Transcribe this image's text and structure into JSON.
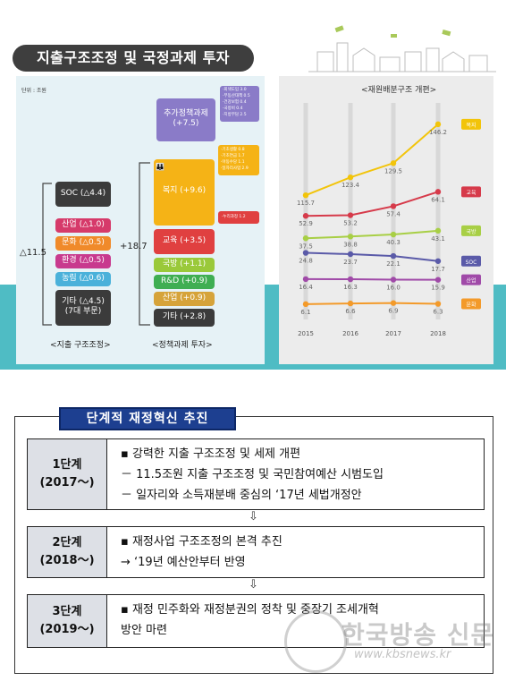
{
  "title": "지출구조조정 및 국정과제 투자",
  "left_panel": {
    "unit": "단위 : 조원",
    "left_total": "△11.5",
    "right_total": "+18.7",
    "cuts": [
      {
        "label": "SOC (△4.4)",
        "color": "#4a4a4a"
      },
      {
        "label": "산업 (△1.0)",
        "color": "#d63a6a"
      },
      {
        "label": "문화 (△0.5)",
        "color": "#f08a2a"
      },
      {
        "label": "환경 (△0.5)",
        "color": "#c83a8e"
      },
      {
        "label": "농림 (△0.6)",
        "color": "#4ab1da"
      }
    ],
    "cuts_other": {
      "line1": "기타 (△4.5)",
      "line2": "(7대 부문)"
    },
    "left_caption": "<지출 구조조정>",
    "right_caption": "<정책과제 투자>",
    "additional": {
      "line1": "추가정책과제",
      "line2": "(+7.5)",
      "color": "#8a7bc8"
    },
    "additional_tags": [
      "·회색도입 3.0",
      "·부동산대책 0.5",
      "·건강보험 0.4",
      "·국방비 0.4",
      "·지방부담 2.5"
    ],
    "welfare": {
      "label": "복지 (+9.6)",
      "color": "#f5b316"
    },
    "welfare_tags": [
      "·기초생활 0.8",
      "·기초연금 1.7",
      "·아동수당 1.1",
      "·일자리사업 2.9"
    ],
    "education": {
      "label": "교육 (+3.5)",
      "color": "#e04040"
    },
    "education_tags": [
      "·누리과정 1.2"
    ],
    "small_items": [
      {
        "label": "국방 (+1.1)",
        "color": "#9ac93a"
      },
      {
        "label": "R&D (+0.9)",
        "color": "#3fae52"
      },
      {
        "label": "산업 (+0.9)",
        "color": "#d6a33a"
      }
    ],
    "invest_other": "기타 (+2.8)"
  },
  "chart_data": {
    "type": "line",
    "title": "<재원배분구조 개편>",
    "x": [
      "2015",
      "2016",
      "2017",
      "2018"
    ],
    "series": [
      {
        "name": "복지",
        "values": [
          115.7,
          123.4,
          129.5,
          146.2
        ],
        "color": "#f2c40a"
      },
      {
        "name": "교육",
        "values": [
          52.9,
          53.2,
          57.4,
          64.1
        ],
        "color": "#d63a4a"
      },
      {
        "name": "국방",
        "values": [
          37.5,
          38.8,
          40.3,
          43.1
        ],
        "color": "#a8cf45"
      },
      {
        "name": "SOC",
        "values": [
          24.8,
          23.7,
          22.1,
          17.7
        ],
        "color": "#5a5aa8"
      },
      {
        "name": "산업",
        "values": [
          16.4,
          16.3,
          16.0,
          15.9
        ],
        "color": "#a04aa8"
      },
      {
        "name": "문화",
        "values": [
          6.1,
          6.6,
          6.9,
          6.3
        ],
        "color": "#f39a2a"
      }
    ],
    "value_labels": [
      [
        "115.7",
        "123.4",
        "129.5",
        "146.2"
      ],
      [
        "52.9",
        "53.2",
        "57.4",
        "64.1"
      ],
      [
        "37.5",
        "38.8",
        "40.3",
        "43.1"
      ],
      [
        "24.8",
        "23.7",
        "22.1",
        "17.7"
      ],
      [
        "16.4",
        "16.3",
        "16.0",
        "15.9"
      ],
      [
        "6.1",
        "6.6",
        "6.9",
        "6.3"
      ]
    ]
  },
  "stages_title": "단계적 재정혁신 추진",
  "stages": [
    {
      "name": "1단계",
      "years": "(2017～)",
      "lines": [
        "▪  강력한 지출 구조조정 및 세제 개편",
        "  － 11.5조원 지출 구조조정 및 국민참여예산 시범도입",
        "  － 일자리와 소득재분배 중심의 ‘17년 세법개정안"
      ]
    },
    {
      "name": "2단계",
      "years": "(2018～)",
      "lines": [
        "▪  재정사업 구조조정의 본격 추진",
        "   → ‘19년 예산안부터 반영"
      ]
    },
    {
      "name": "3단계",
      "years": "(2019～)",
      "lines": [
        "▪  재정 민주화와 재정분권의 정착 및 중장기 조세개혁",
        "    방안 마련"
      ]
    }
  ],
  "arrow_symbol": "⇩",
  "watermark": {
    "text": "한국방송 신문",
    "url": "www.kbsnews.kr"
  }
}
